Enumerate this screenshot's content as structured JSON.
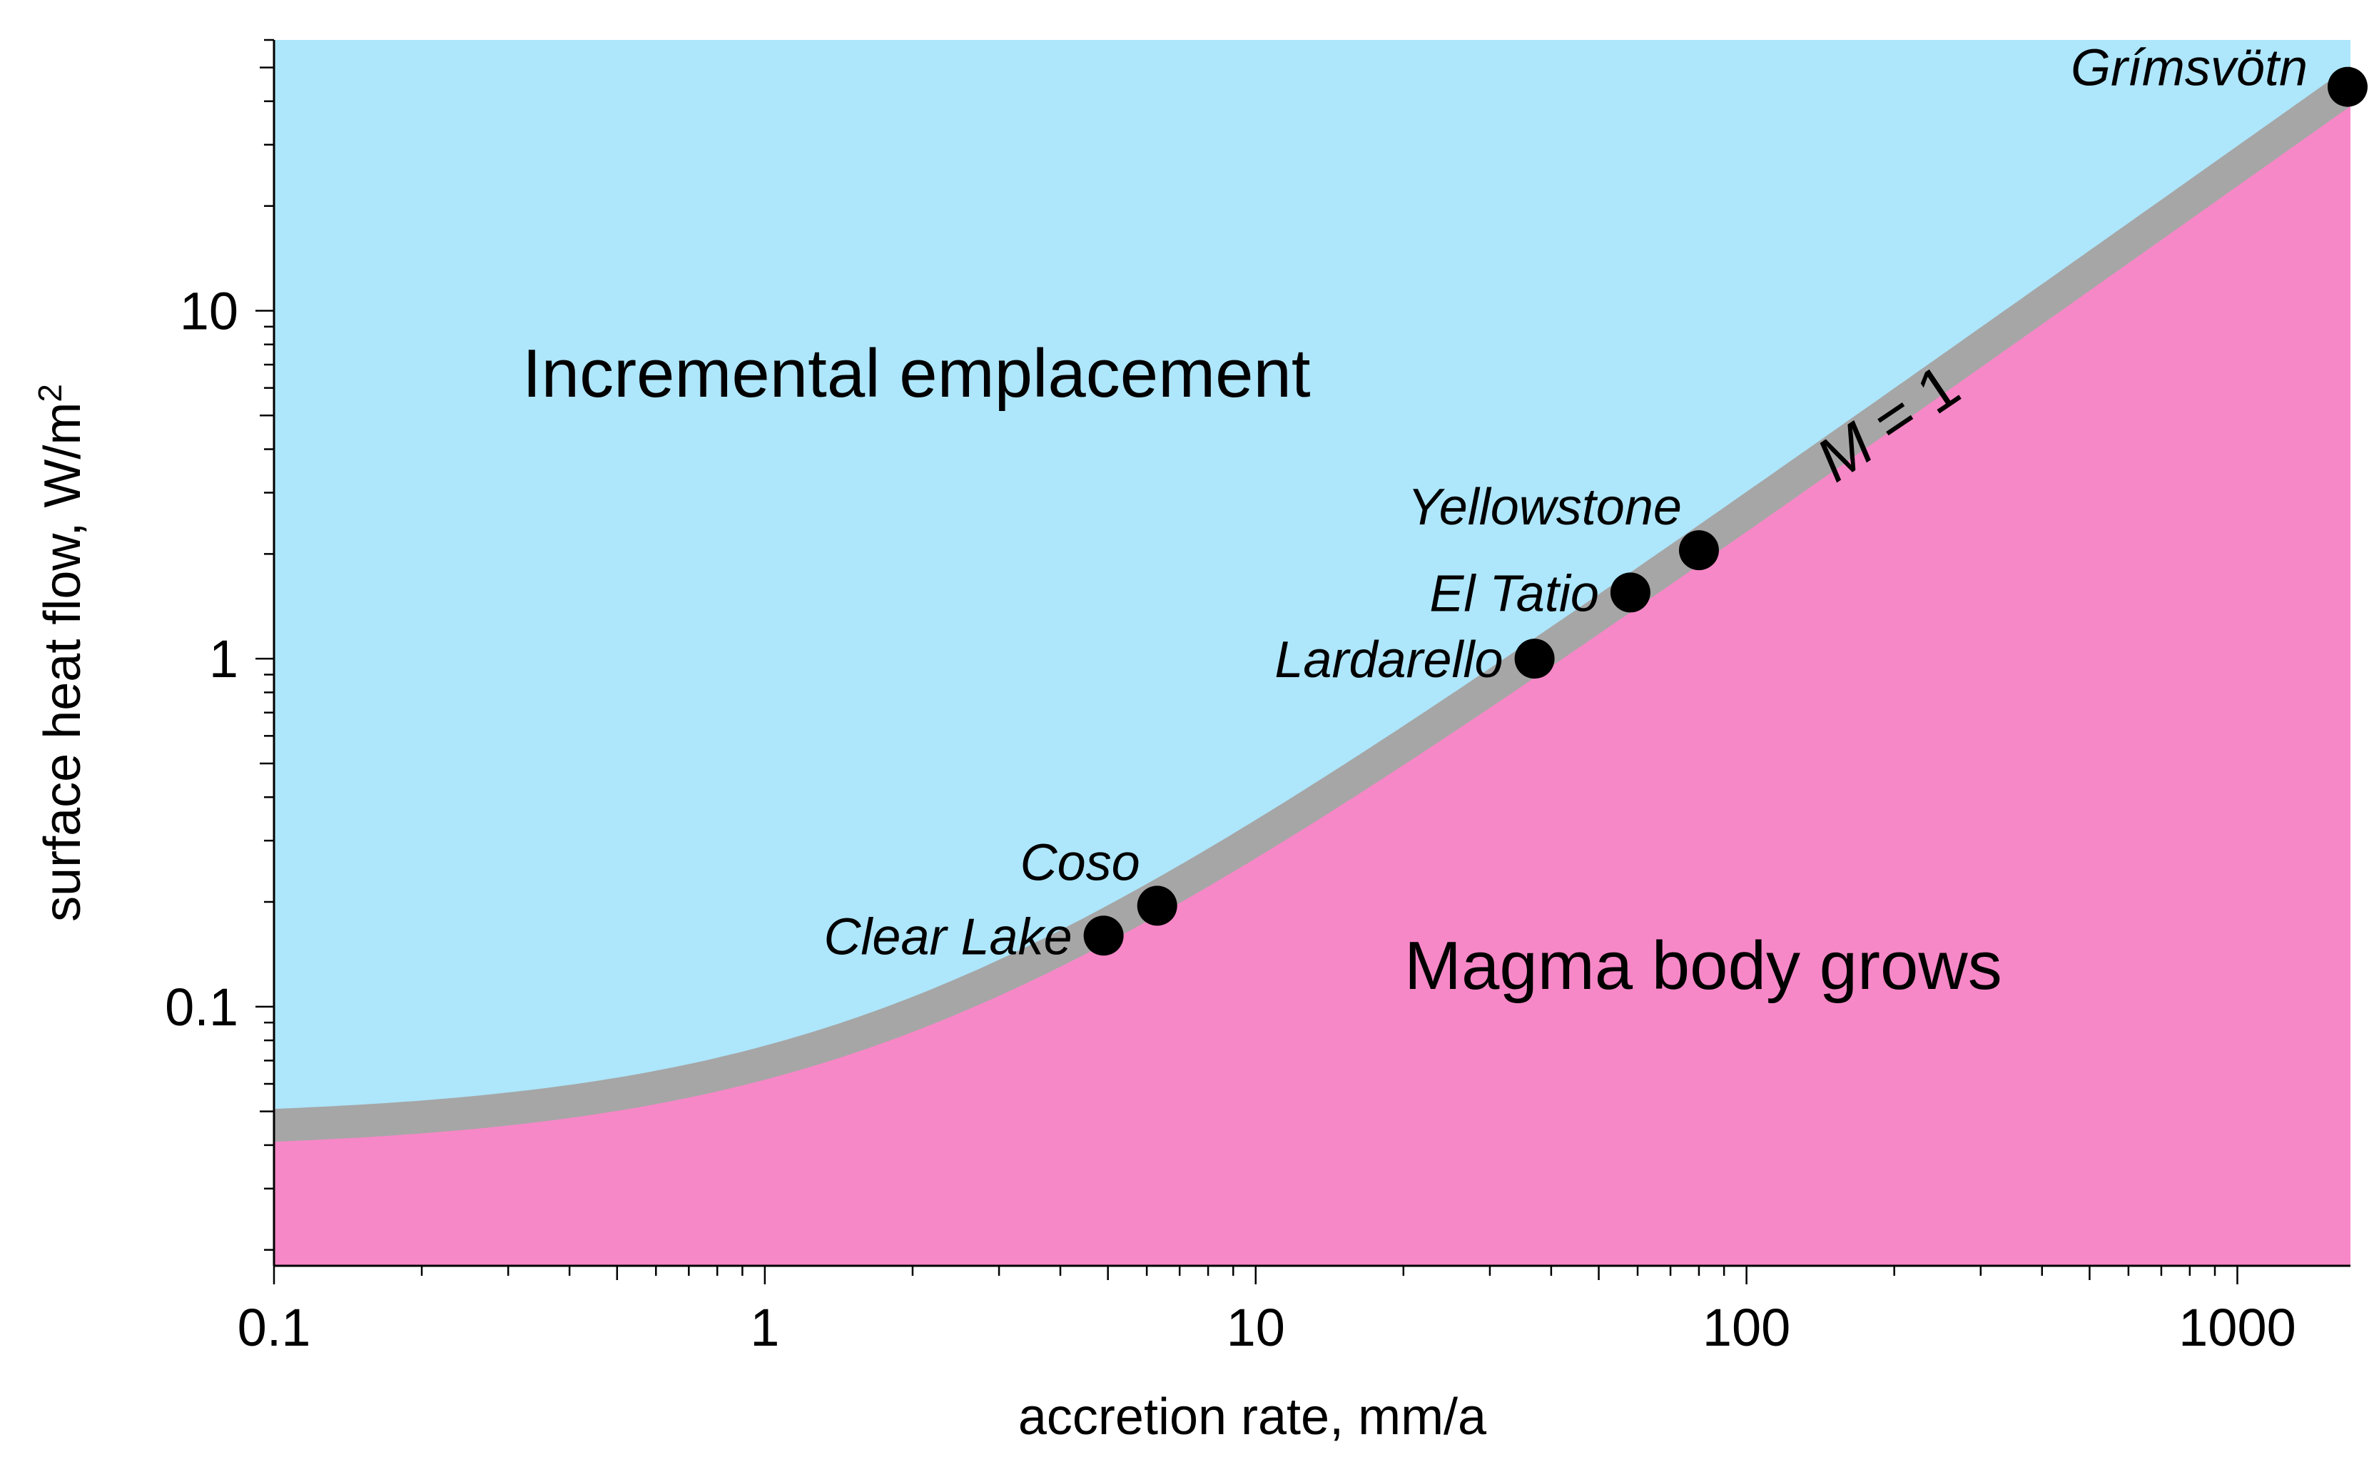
{
  "chart_data": {
    "type": "line",
    "xlabel": "accretion rate, mm/a",
    "ylabel": "surface heat flow, W/m",
    "ylabel_sup": "2",
    "xscale": "log",
    "yscale": "log",
    "xlim": [
      0.1,
      1700
    ],
    "ylim": [
      0.018,
      60
    ],
    "x_ticks": [
      0.1,
      1,
      10,
      100,
      1000
    ],
    "x_tick_labels": [
      "0.1",
      "1",
      "10",
      "100",
      "1000"
    ],
    "y_ticks": [
      0.1,
      1,
      10
    ],
    "y_tick_labels": [
      "0.1",
      "1",
      "10"
    ],
    "regions": [
      {
        "name": "incremental-emplacement",
        "label": "Incremental emplacement",
        "position": "upper-left",
        "color": "#aee6fb"
      },
      {
        "name": "magma-body-grows",
        "label": "Magma body grows",
        "position": "lower-right",
        "color": "#f788c7"
      }
    ],
    "boundary_curve": {
      "label_var": "M",
      "label_rest": " = 1",
      "color": "#a6a6a6",
      "formula": "heat_flow = 0.043 + 0.026 * accretion_rate",
      "x": [
        0.1,
        0.2,
        0.5,
        1,
        2,
        5,
        10,
        20,
        50,
        100,
        200,
        500,
        1000,
        1700
      ],
      "y": [
        0.0456,
        0.0482,
        0.056,
        0.069,
        0.095,
        0.173,
        0.303,
        0.563,
        1.343,
        2.643,
        5.243,
        13.043,
        26.043,
        44.243
      ]
    },
    "sites": [
      {
        "name": "Clear Lake",
        "x": 4.9,
        "y": 0.16,
        "label_side": "left"
      },
      {
        "name": "Coso",
        "x": 6.3,
        "y": 0.195,
        "label_side": "above-left"
      },
      {
        "name": "Lardarello",
        "x": 37,
        "y": 1.0,
        "label_side": "left"
      },
      {
        "name": "El Tatio",
        "x": 58,
        "y": 1.55,
        "label_side": "left"
      },
      {
        "name": "Yellowstone",
        "x": 80,
        "y": 2.05,
        "label_side": "above-left"
      },
      {
        "name": "Grímsvötn",
        "x": 1700,
        "y": 44,
        "label_side": "left"
      }
    ],
    "grid": false,
    "legend": "none"
  }
}
